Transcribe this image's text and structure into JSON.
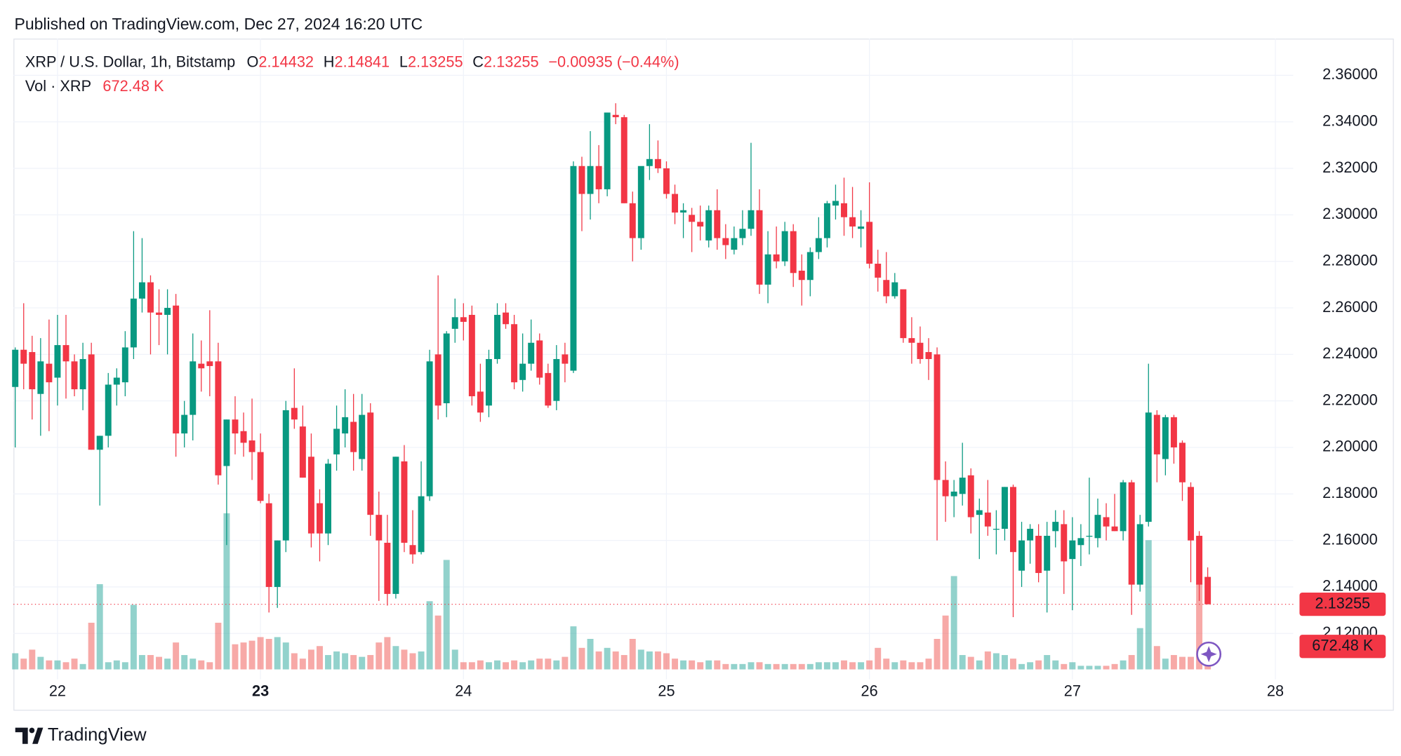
{
  "published": "Published on TradingView.com, Dec 27, 2024 16:20 UTC",
  "brand": "TradingView",
  "chart_data": {
    "type": "candlestick",
    "title": "XRP / U.S. Dollar, 1h, Bitstamp",
    "ohlc_labels": [
      "O",
      "H",
      "L",
      "C"
    ],
    "change": "−0.00935 (−0.44%)",
    "volume_title": "Vol · XRP",
    "volume_label": "672.48 K",
    "up_color": "#089981",
    "down_color": "#f23645",
    "up_volume_color": "#26a69a",
    "down_volume_color": "#ef5350",
    "grid": true,
    "xlim": [
      21.783,
      28.088
    ],
    "xticks": [
      22,
      23,
      24,
      25,
      26,
      27,
      28
    ],
    "xtick_bold": [
      23
    ],
    "ylim": [
      2.1003,
      2.3758
    ],
    "yticks": [
      {
        "value": 2.12,
        "label": "2.12000"
      },
      {
        "value": 2.14,
        "label": "2.14000"
      },
      {
        "value": 2.16,
        "label": "2.16000"
      },
      {
        "value": 2.18,
        "label": "2.18000"
      },
      {
        "value": 2.2,
        "label": "2.20000"
      },
      {
        "value": 2.22,
        "label": "2.22000"
      },
      {
        "value": 2.24,
        "label": "2.24000"
      },
      {
        "value": 2.26,
        "label": "2.26000"
      },
      {
        "value": 2.28,
        "label": "2.28000"
      },
      {
        "value": 2.3,
        "label": "2.30000"
      },
      {
        "value": 2.32,
        "label": "2.32000"
      },
      {
        "value": 2.34,
        "label": "2.34000"
      },
      {
        "value": 2.36,
        "label": "2.36000"
      }
    ],
    "volume_ylim": [
      0,
      58800
    ],
    "x": [
      21.7917,
      21.8333,
      21.875,
      21.9167,
      21.9583,
      22,
      22.0417,
      22.0833,
      22.125,
      22.1667,
      22.2083,
      22.25,
      22.2917,
      22.3333,
      22.375,
      22.4167,
      22.4583,
      22.5,
      22.5417,
      22.5833,
      22.625,
      22.6667,
      22.7083,
      22.75,
      22.7917,
      22.8333,
      22.875,
      22.9167,
      22.9583,
      23,
      23.0417,
      23.0833,
      23.125,
      23.1667,
      23.2083,
      23.25,
      23.2917,
      23.3333,
      23.375,
      23.4167,
      23.4583,
      23.5,
      23.5417,
      23.5833,
      23.625,
      23.6667,
      23.7083,
      23.75,
      23.7917,
      23.8333,
      23.875,
      23.9167,
      23.9583,
      24,
      24.0417,
      24.0833,
      24.125,
      24.1667,
      24.2083,
      24.25,
      24.2917,
      24.3333,
      24.375,
      24.4167,
      24.4583,
      24.5,
      24.5417,
      24.5833,
      24.625,
      24.6667,
      24.7083,
      24.75,
      24.7917,
      24.8333,
      24.875,
      24.9167,
      24.9583,
      25,
      25.0417,
      25.0833,
      25.125,
      25.1667,
      25.2083,
      25.25,
      25.2917,
      25.3333,
      25.375,
      25.4167,
      25.4583,
      25.5,
      25.5417,
      25.5833,
      25.625,
      25.6667,
      25.7083,
      25.75,
      25.7917,
      25.8333,
      25.875,
      25.9167,
      25.9583,
      26,
      26.0417,
      26.0833,
      26.125,
      26.1667,
      26.2083,
      26.25,
      26.2917,
      26.3333,
      26.375,
      26.4167,
      26.4583,
      26.5,
      26.5417,
      26.5833,
      26.625,
      26.6667,
      26.7083,
      26.75,
      26.7917,
      26.8333,
      26.875,
      26.9167,
      26.9583,
      27,
      27.0417,
      27.0833,
      27.125,
      27.1667,
      27.2083,
      27.25,
      27.2917,
      27.3333,
      27.375,
      27.4167,
      27.4583,
      27.5,
      27.5417,
      27.5833,
      27.625,
      27.6667
    ],
    "open": [
      2.226,
      2.242,
      2.241,
      2.223,
      2.236,
      2.23,
      2.244,
      2.237,
      2.225,
      2.24,
      2.199,
      2.205,
      2.227,
      2.228,
      2.243,
      2.264,
      2.271,
      2.258,
      2.257,
      2.261,
      2.206,
      2.214,
      2.236,
      2.237,
      2.237,
      2.192,
      2.212,
      2.207,
      2.203,
      2.198,
      2.176,
      2.14,
      2.16,
      2.217,
      2.209,
      2.196,
      2.176,
      2.163,
      2.197,
      2.206,
      2.211,
      2.195,
      2.215,
      2.171,
      2.159,
      2.137,
      2.194,
      2.158,
      2.155,
      2.179,
      2.24,
      2.219,
      2.251,
      2.256,
      2.257,
      2.224,
      2.218,
      2.238,
      2.258,
      2.253,
      2.229,
      2.236,
      2.246,
      2.232,
      2.22,
      2.24,
      2.233,
      2.321,
      2.309,
      2.321,
      2.311,
      2.343,
      2.342,
      2.305,
      2.29,
      2.321,
      2.324,
      2.32,
      2.309,
      2.301,
      2.3,
      2.297,
      2.289,
      2.302,
      2.29,
      2.285,
      2.29,
      2.294,
      2.302,
      2.27,
      2.283,
      2.28,
      2.293,
      2.276,
      2.272,
      2.284,
      2.29,
      2.304,
      2.305,
      2.299,
      2.294,
      2.297,
      2.279,
      2.272,
      2.265,
      2.268,
      2.247,
      2.245,
      2.241,
      2.24,
      2.186,
      2.179,
      2.18,
      2.188,
      2.171,
      2.172,
      2.165,
      2.165,
      2.183,
      2.147,
      2.16,
      2.162,
      2.147,
      2.164,
      2.167,
      2.152,
      2.158,
      2.162,
      2.161,
      2.17,
      2.166,
      2.164,
      2.185,
      2.141,
      2.168,
      2.214,
      2.195,
      2.213,
      2.202,
      2.183,
      2.162,
      2.14432
    ],
    "high": [
      2.243,
      2.262,
      2.248,
      2.247,
      2.255,
      2.257,
      2.257,
      2.24,
      2.245,
      2.245,
      2.205,
      2.232,
      2.234,
      2.25,
      2.293,
      2.29,
      2.274,
      2.268,
      2.268,
      2.266,
      2.22,
      2.249,
      2.246,
      2.259,
      2.245,
      2.212,
      2.222,
      2.215,
      2.221,
      2.206,
      2.18,
      2.16,
      2.22,
      2.234,
      2.218,
      2.206,
      2.182,
      2.195,
      2.218,
      2.225,
      2.223,
      2.223,
      2.219,
      2.181,
      2.171,
      2.196,
      2.201,
      2.173,
      2.194,
      2.242,
      2.274,
      2.25,
      2.264,
      2.262,
      2.261,
      2.236,
      2.242,
      2.262,
      2.262,
      2.257,
      2.249,
      2.255,
      2.249,
      2.236,
      2.244,
      2.245,
      2.323,
      2.325,
      2.336,
      2.33,
      2.344,
      2.348,
      2.343,
      2.31,
      2.32,
      2.339,
      2.332,
      2.323,
      2.313,
      2.305,
      2.303,
      2.304,
      2.304,
      2.311,
      2.296,
      2.295,
      2.302,
      2.331,
      2.311,
      2.293,
      2.295,
      2.297,
      2.296,
      2.283,
      2.286,
      2.299,
      2.306,
      2.313,
      2.316,
      2.312,
      2.302,
      2.314,
      2.285,
      2.284,
      2.275,
      2.268,
      2.256,
      2.252,
      2.247,
      2.243,
      2.194,
      2.186,
      2.202,
      2.191,
      2.178,
      2.186,
      2.173,
      2.183,
      2.184,
      2.168,
      2.167,
      2.167,
      2.168,
      2.173,
      2.173,
      2.17,
      2.167,
      2.187,
      2.178,
      2.176,
      2.18,
      2.186,
      2.186,
      2.171,
      2.236,
      2.216,
      2.214,
      2.214,
      2.203,
      2.185,
      2.164,
      2.14841
    ],
    "low": [
      2.2,
      2.225,
      2.212,
      2.205,
      2.207,
      2.218,
      2.221,
      2.222,
      2.216,
      2.199,
      2.175,
      2.2,
      2.218,
      2.222,
      2.238,
      2.258,
      2.24,
      2.244,
      2.24,
      2.196,
      2.2,
      2.203,
      2.224,
      2.222,
      2.184,
      2.158,
      2.197,
      2.196,
      2.186,
      2.176,
      2.129,
      2.131,
      2.155,
      2.208,
      2.187,
      2.157,
      2.151,
      2.158,
      2.19,
      2.2,
      2.19,
      2.19,
      2.162,
      2.134,
      2.132,
      2.135,
      2.155,
      2.15,
      2.154,
      2.177,
      2.212,
      2.213,
      2.245,
      2.246,
      2.218,
      2.211,
      2.213,
      2.236,
      2.251,
      2.225,
      2.224,
      2.233,
      2.227,
      2.217,
      2.216,
      2.228,
      2.232,
      2.293,
      2.298,
      2.305,
      2.308,
      2.339,
      2.305,
      2.28,
      2.285,
      2.315,
      2.318,
      2.307,
      2.296,
      2.29,
      2.284,
      2.289,
      2.286,
      2.285,
      2.281,
      2.283,
      2.287,
      2.291,
      2.266,
      2.262,
      2.277,
      2.278,
      2.269,
      2.261,
      2.265,
      2.281,
      2.286,
      2.298,
      2.291,
      2.29,
      2.286,
      2.277,
      2.267,
      2.262,
      2.264,
      2.245,
      2.236,
      2.236,
      2.229,
      2.16,
      2.168,
      2.17,
      2.175,
      2.163,
      2.152,
      2.162,
      2.154,
      2.16,
      2.127,
      2.14,
      2.15,
      2.142,
      2.129,
      2.157,
      2.137,
      2.13,
      2.149,
      2.154,
      2.157,
      2.16,
      2.164,
      2.16,
      2.128,
      2.138,
      2.166,
      2.185,
      2.188,
      2.193,
      2.177,
      2.142,
      2.134,
      2.13255
    ],
    "close": [
      2.242,
      2.236,
      2.225,
      2.237,
      2.228,
      2.244,
      2.237,
      2.225,
      2.238,
      2.199,
      2.205,
      2.227,
      2.23,
      2.243,
      2.264,
      2.271,
      2.258,
      2.257,
      2.26,
      2.206,
      2.214,
      2.237,
      2.234,
      2.235,
      2.188,
      2.212,
      2.206,
      2.202,
      2.198,
      2.177,
      2.14,
      2.16,
      2.216,
      2.212,
      2.187,
      2.163,
      2.163,
      2.193,
      2.208,
      2.213,
      2.198,
      2.214,
      2.171,
      2.16,
      2.137,
      2.196,
      2.159,
      2.154,
      2.179,
      2.237,
      2.218,
      2.249,
      2.256,
      2.254,
      2.222,
      2.215,
      2.238,
      2.257,
      2.253,
      2.228,
      2.236,
      2.245,
      2.23,
      2.218,
      2.238,
      2.236,
      2.321,
      2.309,
      2.321,
      2.311,
      2.344,
      2.342,
      2.305,
      2.29,
      2.321,
      2.324,
      2.32,
      2.309,
      2.301,
      2.302,
      2.297,
      2.295,
      2.302,
      2.29,
      2.287,
      2.29,
      2.294,
      2.302,
      2.27,
      2.283,
      2.28,
      2.293,
      2.275,
      2.272,
      2.284,
      2.29,
      2.305,
      2.306,
      2.299,
      2.295,
      2.295,
      2.279,
      2.273,
      2.265,
      2.271,
      2.247,
      2.245,
      2.238,
      2.238,
      2.186,
      2.179,
      2.181,
      2.187,
      2.17,
      2.173,
      2.166,
      2.165,
      2.183,
      2.155,
      2.16,
      2.165,
      2.146,
      2.162,
      2.168,
      2.151,
      2.16,
      2.161,
      2.162,
      2.171,
      2.166,
      2.164,
      2.185,
      2.141,
      2.167,
      2.215,
      2.197,
      2.213,
      2.2,
      2.185,
      2.16,
      2.141,
      2.13255
    ],
    "volume": [
      1512,
      1008,
      1848,
      1176,
      840,
      840,
      672,
      1008,
      504,
      4368,
      7980,
      672,
      840,
      672,
      6048,
      1344,
      1344,
      1176,
      1008,
      2520,
      1344,
      1008,
      840,
      672,
      4368,
      14616,
      2352,
      2520,
      2688,
      3024,
      2856,
      3024,
      2520,
      1512,
      1008,
      1848,
      2184,
      1344,
      1680,
      1512,
      1344,
      1176,
      1344,
      2520,
      3024,
      2184,
      1848,
      1512,
      1680,
      6384,
      5040,
      10248,
      1848,
      672,
      672,
      840,
      672,
      840,
      672,
      840,
      672,
      840,
      1008,
      1008,
      840,
      1176,
      4032,
      2016,
      2856,
      1680,
      2016,
      1680,
      1344,
      2856,
      1848,
      1680,
      1680,
      1512,
      1008,
      840,
      840,
      672,
      840,
      840,
      504,
      504,
      504,
      672,
      672,
      504,
      504,
      504,
      504,
      504,
      504,
      672,
      672,
      672,
      840,
      672,
      672,
      840,
      2016,
      1008,
      672,
      840,
      672,
      672,
      1008,
      2856,
      5040,
      8736,
      1344,
      1176,
      840,
      1680,
      1512,
      1344,
      1008,
      504,
      672,
      840,
      1344,
      840,
      504,
      672,
      336,
      336,
      336,
      336,
      504,
      840,
      1344,
      3864,
      12096,
      2184,
      1008,
      1344,
      1176,
      1176,
      8064,
      672.48
    ]
  }
}
